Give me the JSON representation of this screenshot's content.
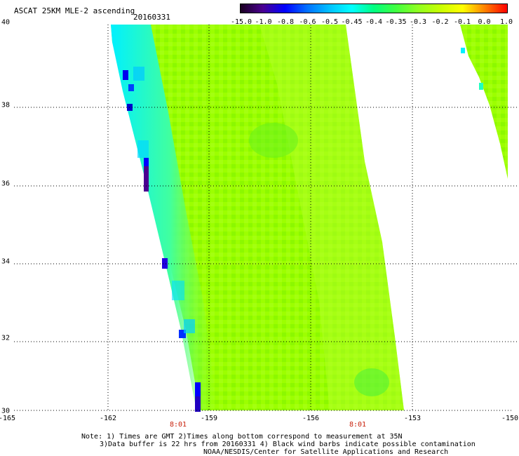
{
  "header": {
    "title": "ASCAT 25KM MLE-2 ascending",
    "date": "20160331"
  },
  "colorbar": {
    "labels": [
      "-15.0",
      "-1.0",
      "-0.8",
      "-0.6",
      "-0.5",
      "-0.45",
      "-0.4",
      "-0.35",
      "-0.3",
      "-0.2",
      "-0.1",
      "0.0",
      "1.0"
    ],
    "colors": [
      "#1a0020",
      "#4a0090",
      "#0000ff",
      "#0070ff",
      "#00c0ff",
      "#00ffff",
      "#00ff80",
      "#40ff40",
      "#90ff20",
      "#c8ff00",
      "#ffff00",
      "#ff8000",
      "#ff0000"
    ]
  },
  "map": {
    "lat_labels": [
      "40",
      "38",
      "36",
      "34",
      "32",
      "30"
    ],
    "lon_labels": [
      "-165",
      "-162",
      "-159",
      "-156",
      "-153",
      "-150"
    ],
    "time_labels": [
      "8:01",
      "8:01"
    ],
    "lat_range": [
      30,
      40
    ],
    "lon_range": [
      -165,
      -150
    ]
  },
  "notes": {
    "line1": "Note: 1) Times are GMT 2)Times along bottom correspond to measurement at 35N",
    "line2": "3)Data buffer is 22 hrs from 20160331 4) Black wind barbs indicate possible contamination",
    "line3": "NOAA/NESDIS/Center for Satellite Applications and Research"
  }
}
